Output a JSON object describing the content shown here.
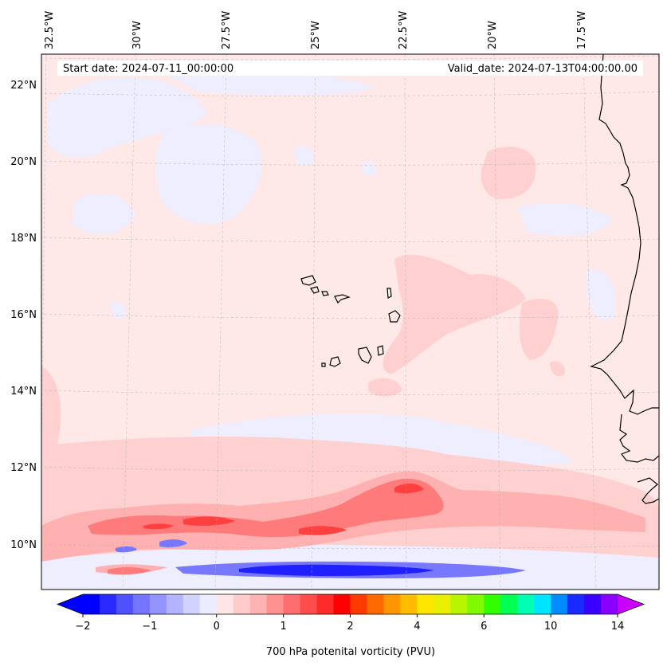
{
  "header": {
    "start_date": "Start date: 2024-07-11_00:00:00",
    "valid_date": "Valid_date: 2024-07-13T04:00:00.00"
  },
  "map": {
    "projection": "Lambert conformal (curved graticule)",
    "lon_labels": [
      "32.5°W",
      "30°W",
      "27.5°W",
      "25°W",
      "22.5°W",
      "20°W",
      "17.5°W"
    ],
    "lat_labels": [
      "22°N",
      "20°N",
      "18°N",
      "16°N",
      "14°N",
      "12°N",
      "10°N"
    ],
    "gridlines": "dashed light grey",
    "coastline_color": "#000000",
    "features": [
      "Cape Verde islands",
      "West African coastline"
    ]
  },
  "colorbar": {
    "label": "700 hPa potenital vorticity (PVU)",
    "tick_labels": [
      "−2",
      "−1",
      "0",
      "1",
      "2",
      "4",
      "6",
      "10",
      "14"
    ],
    "extend": "both",
    "colors": [
      "#0000ff",
      "#2a2aff",
      "#5050ff",
      "#7474ff",
      "#9494ff",
      "#b3b3ff",
      "#d2d2ff",
      "#ececff",
      "#ffe6e6",
      "#ffcccc",
      "#ffb2b2",
      "#ff9090",
      "#ff6e6e",
      "#ff4c4c",
      "#ff2a2a",
      "#ff0000",
      "#ff3a00",
      "#ff6a00",
      "#ff9600",
      "#ffbc00",
      "#ffe600",
      "#e6f000",
      "#b8f500",
      "#80fa00",
      "#30ff00",
      "#00ff50",
      "#00ffb0",
      "#00e5ff",
      "#008cff",
      "#1a2aff",
      "#3a00ff",
      "#8800ff"
    ],
    "under_color": "#0000ff",
    "over_color": "#cc00ff"
  },
  "field": {
    "background_color": "#ffe8e8",
    "light_blue": "#eeeeff",
    "pink": "#ffd0d0",
    "salmon": "#ffb0b0",
    "red": "#ff7a7a",
    "deep_red": "#ff4040",
    "blue": "#7878ff",
    "deep_blue": "#2020ff"
  }
}
